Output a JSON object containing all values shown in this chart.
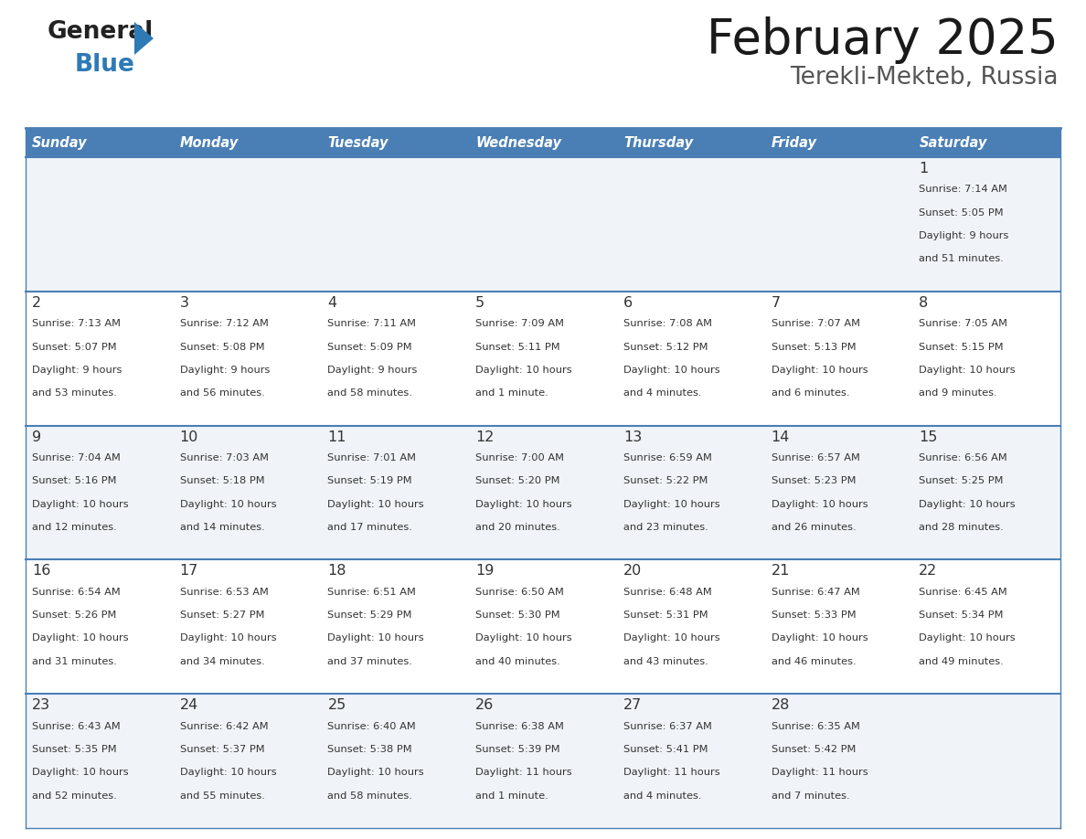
{
  "title": "February 2025",
  "subtitle": "Terekli-Mekteb, Russia",
  "days_of_week": [
    "Sunday",
    "Monday",
    "Tuesday",
    "Wednesday",
    "Thursday",
    "Friday",
    "Saturday"
  ],
  "header_bg": "#4a7fb5",
  "header_text": "#ffffff",
  "row_bg_light": "#f2f2f2",
  "row_bg_white": "#ffffff",
  "separator_color": "#4a7fb5",
  "text_color": "#333333",
  "cell_data": [
    [
      null,
      null,
      null,
      null,
      null,
      null,
      {
        "day": "1",
        "sunrise": "7:14 AM",
        "sunset": "5:05 PM",
        "daylight": "9 hours\nand 51 minutes."
      }
    ],
    [
      {
        "day": "2",
        "sunrise": "7:13 AM",
        "sunset": "5:07 PM",
        "daylight": "9 hours\nand 53 minutes."
      },
      {
        "day": "3",
        "sunrise": "7:12 AM",
        "sunset": "5:08 PM",
        "daylight": "9 hours\nand 56 minutes."
      },
      {
        "day": "4",
        "sunrise": "7:11 AM",
        "sunset": "5:09 PM",
        "daylight": "9 hours\nand 58 minutes."
      },
      {
        "day": "5",
        "sunrise": "7:09 AM",
        "sunset": "5:11 PM",
        "daylight": "10 hours\nand 1 minute."
      },
      {
        "day": "6",
        "sunrise": "7:08 AM",
        "sunset": "5:12 PM",
        "daylight": "10 hours\nand 4 minutes."
      },
      {
        "day": "7",
        "sunrise": "7:07 AM",
        "sunset": "5:13 PM",
        "daylight": "10 hours\nand 6 minutes."
      },
      {
        "day": "8",
        "sunrise": "7:05 AM",
        "sunset": "5:15 PM",
        "daylight": "10 hours\nand 9 minutes."
      }
    ],
    [
      {
        "day": "9",
        "sunrise": "7:04 AM",
        "sunset": "5:16 PM",
        "daylight": "10 hours\nand 12 minutes."
      },
      {
        "day": "10",
        "sunrise": "7:03 AM",
        "sunset": "5:18 PM",
        "daylight": "10 hours\nand 14 minutes."
      },
      {
        "day": "11",
        "sunrise": "7:01 AM",
        "sunset": "5:19 PM",
        "daylight": "10 hours\nand 17 minutes."
      },
      {
        "day": "12",
        "sunrise": "7:00 AM",
        "sunset": "5:20 PM",
        "daylight": "10 hours\nand 20 minutes."
      },
      {
        "day": "13",
        "sunrise": "6:59 AM",
        "sunset": "5:22 PM",
        "daylight": "10 hours\nand 23 minutes."
      },
      {
        "day": "14",
        "sunrise": "6:57 AM",
        "sunset": "5:23 PM",
        "daylight": "10 hours\nand 26 minutes."
      },
      {
        "day": "15",
        "sunrise": "6:56 AM",
        "sunset": "5:25 PM",
        "daylight": "10 hours\nand 28 minutes."
      }
    ],
    [
      {
        "day": "16",
        "sunrise": "6:54 AM",
        "sunset": "5:26 PM",
        "daylight": "10 hours\nand 31 minutes."
      },
      {
        "day": "17",
        "sunrise": "6:53 AM",
        "sunset": "5:27 PM",
        "daylight": "10 hours\nand 34 minutes."
      },
      {
        "day": "18",
        "sunrise": "6:51 AM",
        "sunset": "5:29 PM",
        "daylight": "10 hours\nand 37 minutes."
      },
      {
        "day": "19",
        "sunrise": "6:50 AM",
        "sunset": "5:30 PM",
        "daylight": "10 hours\nand 40 minutes."
      },
      {
        "day": "20",
        "sunrise": "6:48 AM",
        "sunset": "5:31 PM",
        "daylight": "10 hours\nand 43 minutes."
      },
      {
        "day": "21",
        "sunrise": "6:47 AM",
        "sunset": "5:33 PM",
        "daylight": "10 hours\nand 46 minutes."
      },
      {
        "day": "22",
        "sunrise": "6:45 AM",
        "sunset": "5:34 PM",
        "daylight": "10 hours\nand 49 minutes."
      }
    ],
    [
      {
        "day": "23",
        "sunrise": "6:43 AM",
        "sunset": "5:35 PM",
        "daylight": "10 hours\nand 52 minutes."
      },
      {
        "day": "24",
        "sunrise": "6:42 AM",
        "sunset": "5:37 PM",
        "daylight": "10 hours\nand 55 minutes."
      },
      {
        "day": "25",
        "sunrise": "6:40 AM",
        "sunset": "5:38 PM",
        "daylight": "10 hours\nand 58 minutes."
      },
      {
        "day": "26",
        "sunrise": "6:38 AM",
        "sunset": "5:39 PM",
        "daylight": "11 hours\nand 1 minute."
      },
      {
        "day": "27",
        "sunrise": "6:37 AM",
        "sunset": "5:41 PM",
        "daylight": "11 hours\nand 4 minutes."
      },
      {
        "day": "28",
        "sunrise": "6:35 AM",
        "sunset": "5:42 PM",
        "daylight": "11 hours\nand 7 minutes."
      },
      null
    ]
  ]
}
